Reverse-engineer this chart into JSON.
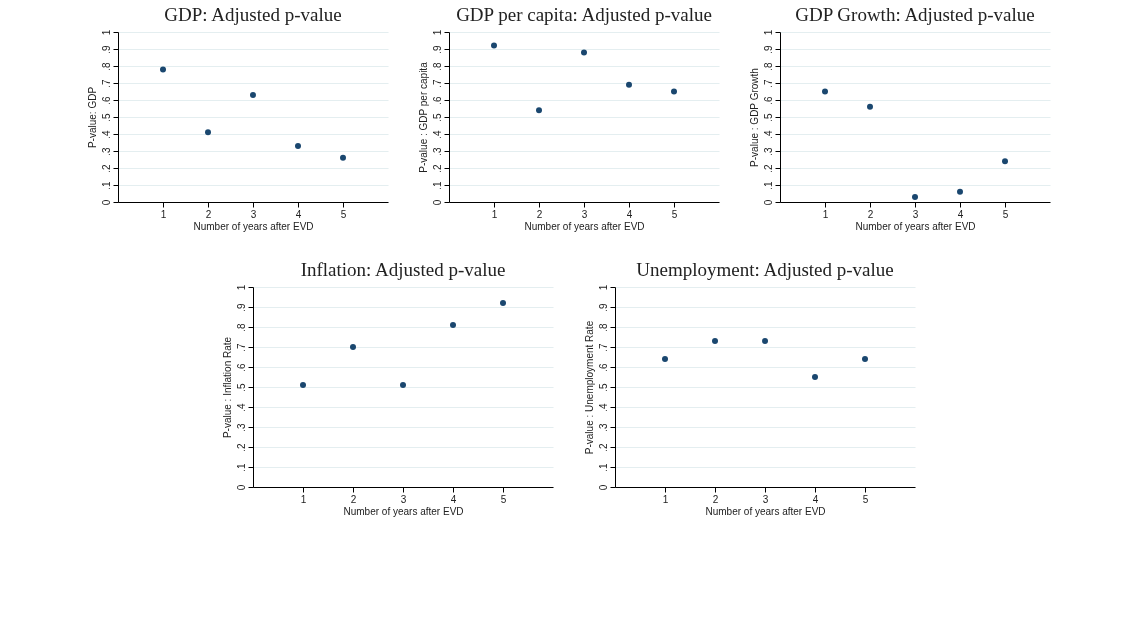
{
  "chart_data": [
    {
      "type": "scatter",
      "title": "GDP: Adjusted p-value",
      "xlabel": "Number of years after EVD",
      "ylabel": "P-value: GDP",
      "x": [
        1,
        2,
        3,
        4,
        5
      ],
      "values": [
        0.78,
        0.41,
        0.63,
        0.33,
        0.26
      ],
      "color": "#1a476f",
      "marker": "circle",
      "grid": "y",
      "xlim": [
        0,
        6
      ],
      "xticks": [
        1,
        2,
        3,
        4,
        5
      ],
      "ylim": [
        0,
        1
      ],
      "yticks": [
        {
          "value": 0,
          "label": "0"
        },
        {
          "value": 0.1,
          "label": ".1"
        },
        {
          "value": 0.2,
          "label": ".2"
        },
        {
          "value": 0.3,
          "label": ".3"
        },
        {
          "value": 0.4,
          "label": ".4"
        },
        {
          "value": 0.5,
          "label": ".5"
        },
        {
          "value": 0.6,
          "label": ".6"
        },
        {
          "value": 0.7,
          "label": ".7"
        },
        {
          "value": 0.8,
          "label": ".8"
        },
        {
          "value": 0.9,
          "label": ".9"
        },
        {
          "value": 1,
          "label": "1"
        }
      ]
    },
    {
      "type": "scatter",
      "title": "GDP per capita: Adjusted p-value",
      "xlabel": "Number of years after EVD",
      "ylabel": "P-value : GDP per capita",
      "x": [
        1,
        2,
        3,
        4,
        5
      ],
      "values": [
        0.92,
        0.54,
        0.88,
        0.69,
        0.65
      ],
      "color": "#1a476f",
      "marker": "circle",
      "grid": "y",
      "xlim": [
        0,
        6
      ],
      "xticks": [
        1,
        2,
        3,
        4,
        5
      ],
      "ylim": [
        0,
        1
      ],
      "yticks": [
        {
          "value": 0,
          "label": "0"
        },
        {
          "value": 0.1,
          "label": ".1"
        },
        {
          "value": 0.2,
          "label": ".2"
        },
        {
          "value": 0.3,
          "label": ".3"
        },
        {
          "value": 0.4,
          "label": ".4"
        },
        {
          "value": 0.5,
          "label": ".5"
        },
        {
          "value": 0.6,
          "label": ".6"
        },
        {
          "value": 0.7,
          "label": ".7"
        },
        {
          "value": 0.8,
          "label": ".8"
        },
        {
          "value": 0.9,
          "label": ".9"
        },
        {
          "value": 1,
          "label": "1"
        }
      ]
    },
    {
      "type": "scatter",
      "title": "GDP Growth: Adjusted p-value",
      "xlabel": "Number of years after EVD",
      "ylabel": "P-value : GDP Growth",
      "x": [
        1,
        2,
        3,
        4,
        5
      ],
      "values": [
        0.65,
        0.56,
        0.03,
        0.06,
        0.24
      ],
      "color": "#1a476f",
      "marker": "circle",
      "grid": "y",
      "xlim": [
        0,
        6
      ],
      "xticks": [
        1,
        2,
        3,
        4,
        5
      ],
      "ylim": [
        0,
        1
      ],
      "yticks": [
        {
          "value": 0,
          "label": "0"
        },
        {
          "value": 0.1,
          "label": ".1"
        },
        {
          "value": 0.2,
          "label": ".2"
        },
        {
          "value": 0.3,
          "label": ".3"
        },
        {
          "value": 0.4,
          "label": ".4"
        },
        {
          "value": 0.5,
          "label": ".5"
        },
        {
          "value": 0.6,
          "label": ".6"
        },
        {
          "value": 0.7,
          "label": ".7"
        },
        {
          "value": 0.8,
          "label": ".8"
        },
        {
          "value": 0.9,
          "label": ".9"
        },
        {
          "value": 1,
          "label": "1"
        }
      ]
    },
    {
      "type": "scatter",
      "title": "Inflation: Adjusted p-value",
      "xlabel": "Number of years after EVD",
      "ylabel": "P-value : Inflation Rate",
      "x": [
        1,
        2,
        3,
        4,
        5
      ],
      "values": [
        0.51,
        0.7,
        0.51,
        0.81,
        0.92
      ],
      "color": "#1a476f",
      "marker": "circle",
      "grid": "y",
      "xlim": [
        0,
        6
      ],
      "xticks": [
        1,
        2,
        3,
        4,
        5
      ],
      "ylim": [
        0,
        1
      ],
      "yticks": [
        {
          "value": 0,
          "label": "0"
        },
        {
          "value": 0.1,
          "label": ".1"
        },
        {
          "value": 0.2,
          "label": ".2"
        },
        {
          "value": 0.3,
          "label": ".3"
        },
        {
          "value": 0.4,
          "label": ".4"
        },
        {
          "value": 0.5,
          "label": ".5"
        },
        {
          "value": 0.6,
          "label": ".6"
        },
        {
          "value": 0.7,
          "label": ".7"
        },
        {
          "value": 0.8,
          "label": ".8"
        },
        {
          "value": 0.9,
          "label": ".9"
        },
        {
          "value": 1,
          "label": "1"
        }
      ]
    },
    {
      "type": "scatter",
      "title": "Unemployment: Adjusted p-value",
      "xlabel": "Number of years after EVD",
      "ylabel": "P-value : Unemployment Rate",
      "x": [
        1,
        2,
        3,
        4,
        5
      ],
      "values": [
        0.64,
        0.73,
        0.73,
        0.55,
        0.64
      ],
      "color": "#1a476f",
      "marker": "circle",
      "grid": "y",
      "xlim": [
        0,
        6
      ],
      "xticks": [
        1,
        2,
        3,
        4,
        5
      ],
      "ylim": [
        0,
        1
      ],
      "yticks": [
        {
          "value": 0,
          "label": "0"
        },
        {
          "value": 0.1,
          "label": ".1"
        },
        {
          "value": 0.2,
          "label": ".2"
        },
        {
          "value": 0.3,
          "label": ".3"
        },
        {
          "value": 0.4,
          "label": ".4"
        },
        {
          "value": 0.5,
          "label": ".5"
        },
        {
          "value": 0.6,
          "label": ".6"
        },
        {
          "value": 0.7,
          "label": ".7"
        },
        {
          "value": 0.8,
          "label": ".8"
        },
        {
          "value": 0.9,
          "label": ".9"
        },
        {
          "value": 1,
          "label": "1"
        }
      ]
    }
  ]
}
